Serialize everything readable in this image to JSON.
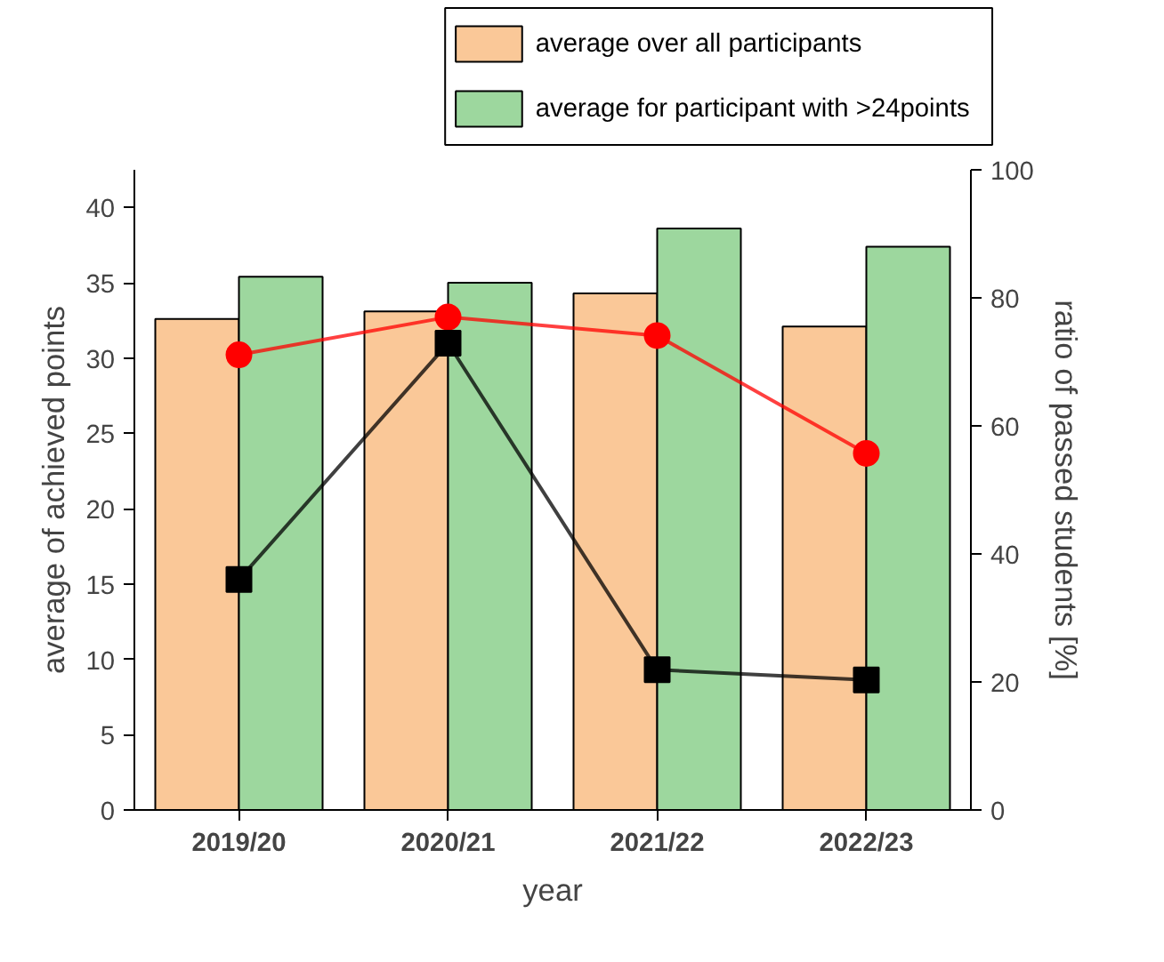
{
  "chart_data": {
    "type": "bar",
    "xlabel": "year",
    "ylabel": "average of achieved points",
    "y2label": "ratio of passed students [%]",
    "categories": [
      "2019/20",
      "2020/21",
      "2021/22",
      "2022/23"
    ],
    "series": [
      {
        "name": "average over all participants",
        "color": "#fac898",
        "values": [
          32.6,
          33.1,
          34.3,
          32.1
        ]
      },
      {
        "name": "average for participant with >24points",
        "color": "#9dd79e",
        "values": [
          35.4,
          35.0,
          38.6,
          37.4
        ]
      },
      {
        "type": "line",
        "axis": "y2",
        "color": "#ff0000",
        "marker": "circle",
        "values": [
          71.1,
          77.0,
          74.1,
          55.7
        ]
      },
      {
        "type": "line",
        "axis": "y2",
        "color": "#000000",
        "marker": "square",
        "values": [
          36.0,
          72.9,
          21.9,
          20.3
        ]
      }
    ],
    "ylim": [
      0,
      42.5
    ],
    "yticks": [
      0,
      5,
      10,
      15,
      20,
      25,
      30,
      35,
      40
    ],
    "y2lim": [
      0,
      100
    ],
    "y2ticks": [
      0,
      20,
      40,
      60,
      80,
      100
    ],
    "grid": false,
    "legend": "top right"
  }
}
